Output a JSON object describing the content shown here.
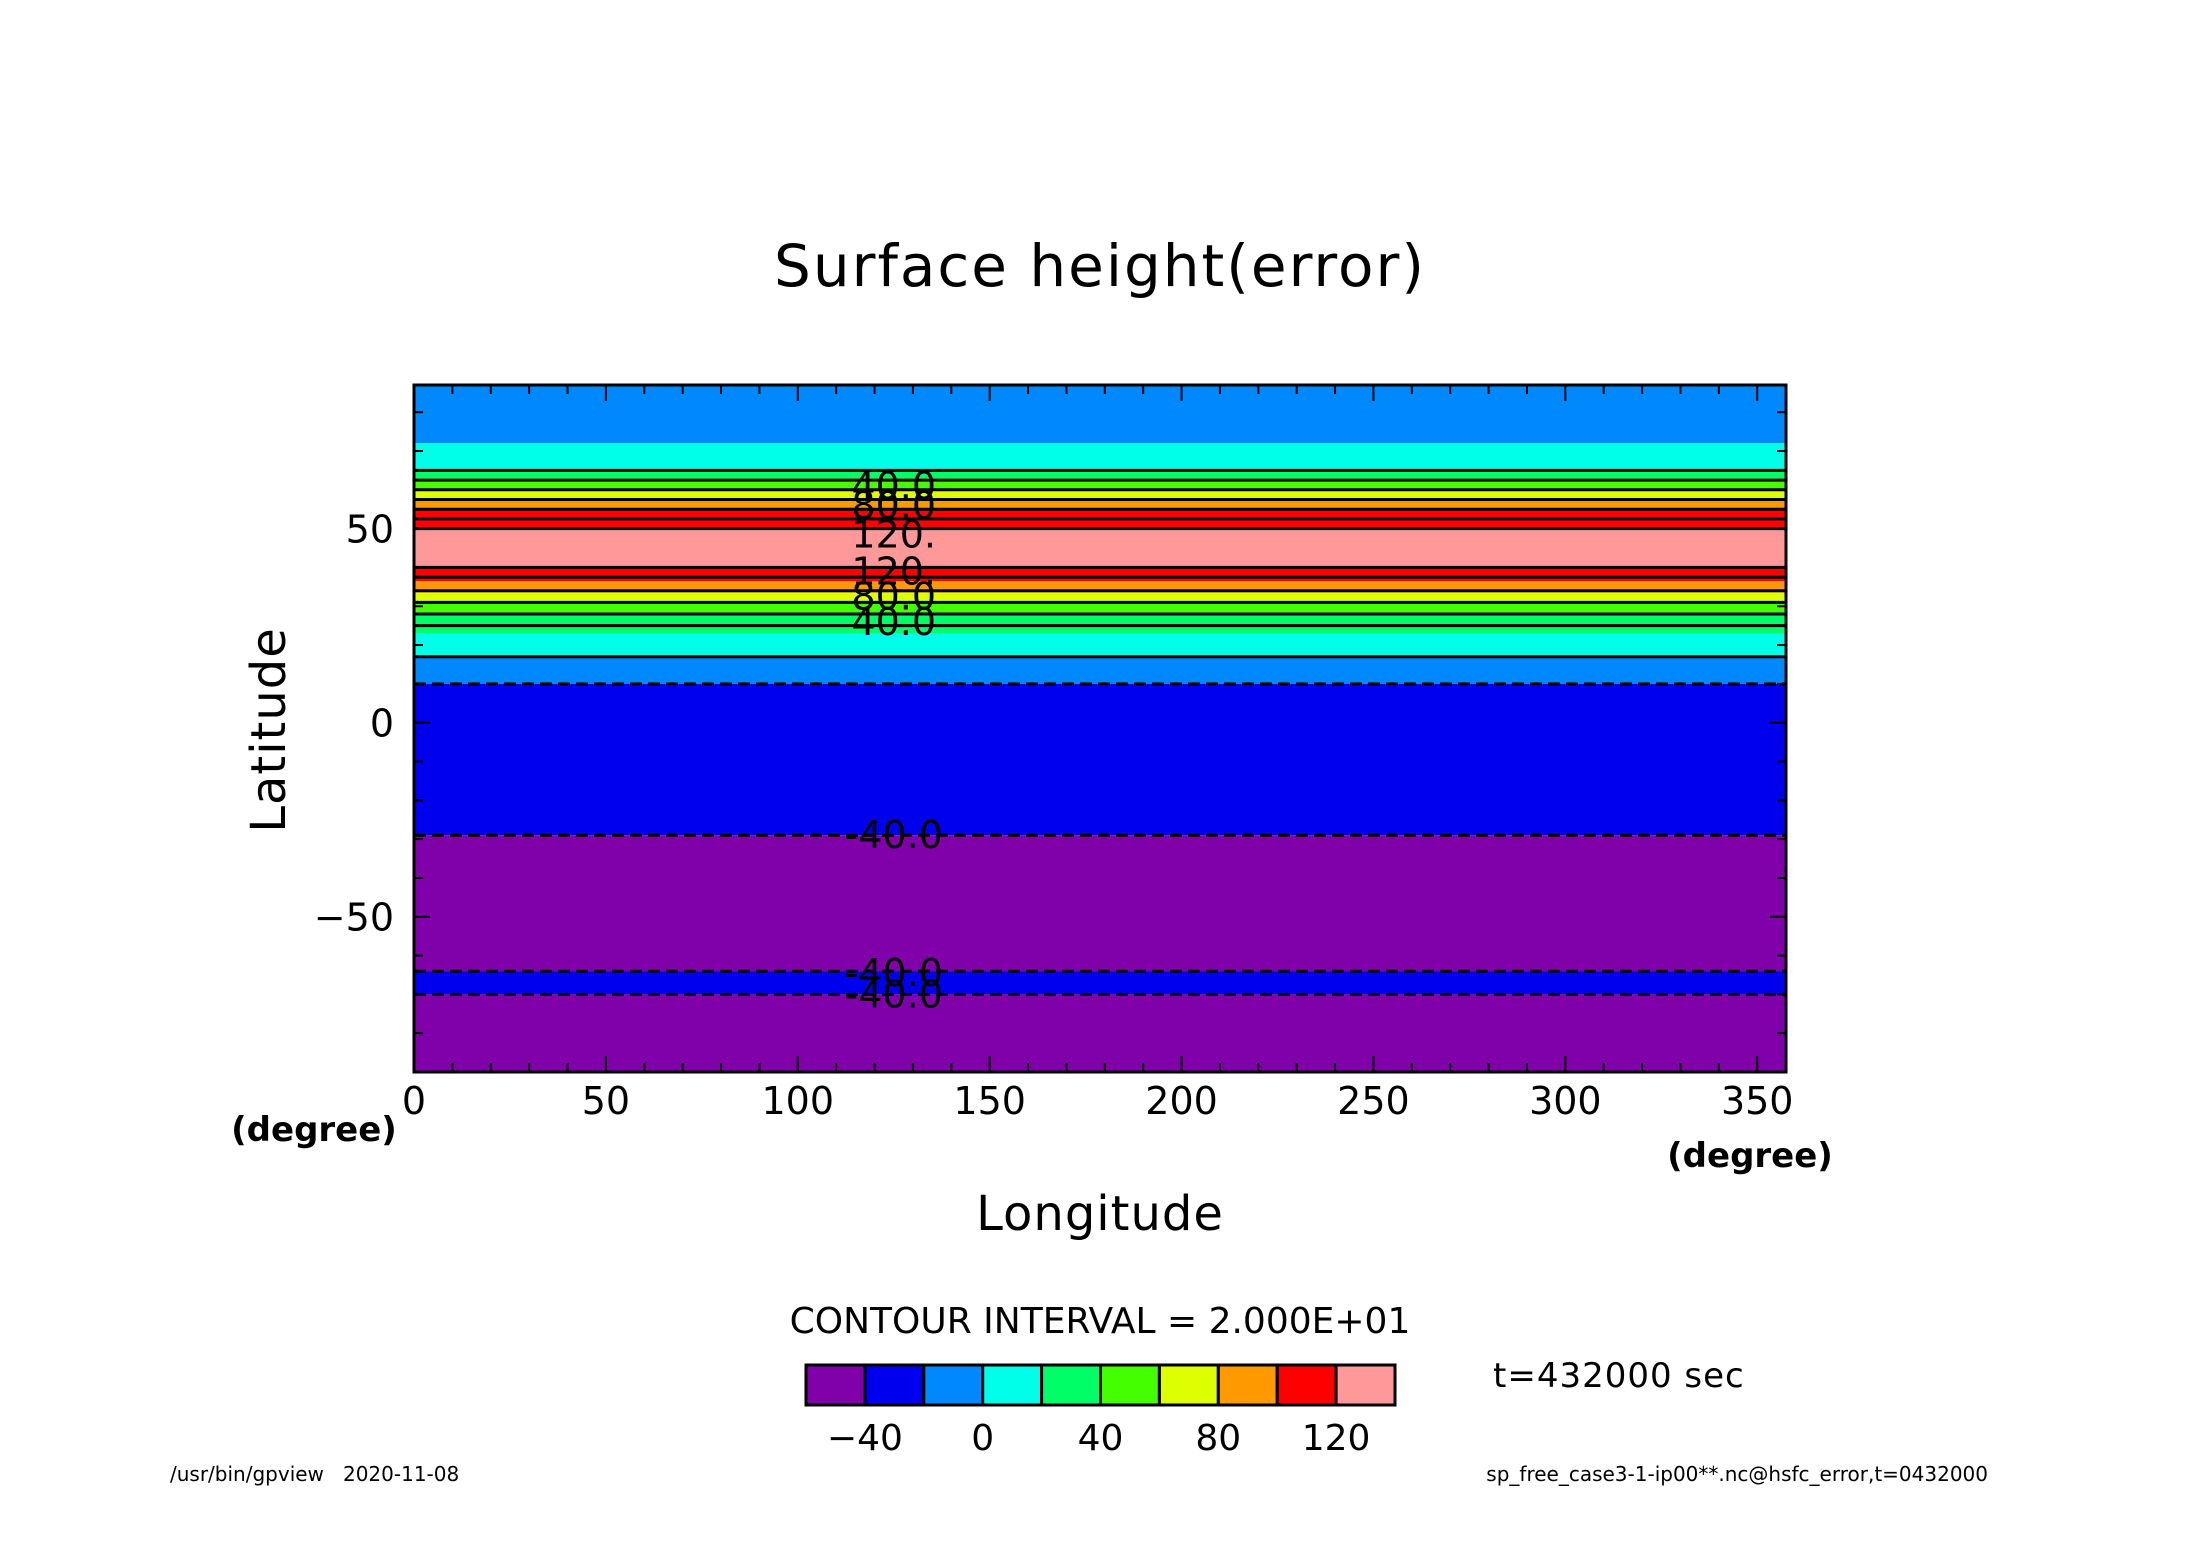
{
  "chart_data": {
    "type": "heatmap",
    "title": "Surface height(error)",
    "xlabel": "Longitude",
    "ylabel": "Latitude",
    "x_unit": "(degree)",
    "y_unit": "(degree)",
    "xlim": [
      0,
      357.5
    ],
    "ylim": [
      -90,
      87
    ],
    "xticks": [
      0,
      50,
      100,
      150,
      200,
      250,
      300,
      350
    ],
    "yticks": [
      50,
      0,
      -50
    ],
    "bands": [
      {
        "lat_min": 72,
        "lat_max": 87,
        "color": "#0088ff"
      },
      {
        "lat_min": 65,
        "lat_max": 72,
        "color": "#00ffe8"
      },
      {
        "lat_min": 62.5,
        "lat_max": 65,
        "color": "#00ff66"
      },
      {
        "lat_min": 60,
        "lat_max": 62.5,
        "color": "#44ff00"
      },
      {
        "lat_min": 57.5,
        "lat_max": 60,
        "color": "#ddff00"
      },
      {
        "lat_min": 55,
        "lat_max": 57.5,
        "color": "#ff9900"
      },
      {
        "lat_min": 50,
        "lat_max": 55,
        "color": "#ff0000"
      },
      {
        "lat_min": 40,
        "lat_max": 50,
        "color": "#ff9999"
      },
      {
        "lat_min": 36.5,
        "lat_max": 40,
        "color": "#ff0000"
      },
      {
        "lat_min": 33.5,
        "lat_max": 36.5,
        "color": "#ff9900"
      },
      {
        "lat_min": 31,
        "lat_max": 33.5,
        "color": "#ddff00"
      },
      {
        "lat_min": 28,
        "lat_max": 31,
        "color": "#44ff00"
      },
      {
        "lat_min": 23,
        "lat_max": 28,
        "color": "#00ff66"
      },
      {
        "lat_min": 17,
        "lat_max": 23,
        "color": "#00ffe8"
      },
      {
        "lat_min": 10,
        "lat_max": 17,
        "color": "#0088ff"
      },
      {
        "lat_min": -29,
        "lat_max": 10,
        "color": "#0000ee"
      },
      {
        "lat_min": -64,
        "lat_max": -29,
        "color": "#8000aa"
      },
      {
        "lat_min": -70,
        "lat_max": -64,
        "color": "#0000ee"
      },
      {
        "lat_min": -90,
        "lat_max": -70,
        "color": "#8000aa"
      }
    ],
    "contours": [
      {
        "lat": 65,
        "value": 0,
        "dashed": false
      },
      {
        "lat": 62.5,
        "value": 20,
        "dashed": false
      },
      {
        "lat": 60,
        "value": 40,
        "dashed": false
      },
      {
        "lat": 57.5,
        "value": 60,
        "dashed": false
      },
      {
        "lat": 55,
        "value": 80,
        "dashed": false
      },
      {
        "lat": 52.5,
        "value": 100,
        "dashed": false
      },
      {
        "lat": 50,
        "value": 120,
        "dashed": false
      },
      {
        "lat": 40,
        "value": 120,
        "dashed": false
      },
      {
        "lat": 37.5,
        "value": 100,
        "dashed": false
      },
      {
        "lat": 34,
        "value": 80,
        "dashed": false
      },
      {
        "lat": 31,
        "value": 60,
        "dashed": false
      },
      {
        "lat": 28,
        "value": 40,
        "dashed": false
      },
      {
        "lat": 25,
        "value": 20,
        "dashed": false
      },
      {
        "lat": 17,
        "value": 0,
        "dashed": false
      },
      {
        "lat": 10,
        "value": -20,
        "dashed": true
      },
      {
        "lat": -29,
        "value": -40,
        "dashed": true
      },
      {
        "lat": -64,
        "value": -40,
        "dashed": true
      },
      {
        "lat": -70,
        "value": -40,
        "dashed": true
      }
    ],
    "contour_labels": [
      {
        "text": "40.0",
        "lat": 61,
        "lon": 125
      },
      {
        "text": "80.0",
        "lat": 56,
        "lon": 125
      },
      {
        "text": "120.",
        "lat": 48.5,
        "lon": 125
      },
      {
        "text": "120.",
        "lat": 39,
        "lon": 125
      },
      {
        "text": "80.0",
        "lat": 32.5,
        "lon": 125
      },
      {
        "text": "40.0",
        "lat": 26,
        "lon": 125
      },
      {
        "text": "-40.0",
        "lat": -29,
        "lon": 125
      },
      {
        "text": "-40.0",
        "lat": -64.5,
        "lon": 125
      },
      {
        "text": "-40.0",
        "lat": -70,
        "lon": 125
      }
    ],
    "contour_interval_label": "CONTOUR INTERVAL = 2.000E+01",
    "colorbar": {
      "colors": [
        "#8000aa",
        "#0000ee",
        "#0088ff",
        "#00ffe8",
        "#00ff66",
        "#44ff00",
        "#ddff00",
        "#ff9900",
        "#ff0000",
        "#ff9999"
      ],
      "tick_labels": [
        "−40",
        "0",
        "40",
        "80",
        "120"
      ],
      "tick_positions": [
        2,
        4,
        6,
        8,
        10
      ]
    },
    "time_label": "t=432000 sec",
    "footer_left": "/usr/bin/gpview   2020-11-08",
    "footer_right": "sp_free_case3-1-ip00**.nc@hsfc_error,t=0432000"
  }
}
